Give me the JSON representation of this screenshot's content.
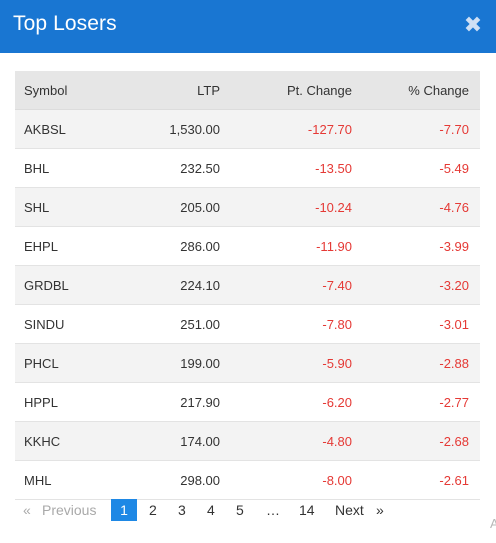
{
  "header": {
    "title": "Top Losers",
    "close_icon": "close-icon"
  },
  "table": {
    "columns": [
      "Symbol",
      "LTP",
      "Pt. Change",
      "% Change"
    ],
    "rows": [
      {
        "symbol": "AKBSL",
        "ltp": "1,530.00",
        "pt_change": "-127.70",
        "pct_change": "-7.70"
      },
      {
        "symbol": "BHL",
        "ltp": "232.50",
        "pt_change": "-13.50",
        "pct_change": "-5.49"
      },
      {
        "symbol": "SHL",
        "ltp": "205.00",
        "pt_change": "-10.24",
        "pct_change": "-4.76"
      },
      {
        "symbol": "EHPL",
        "ltp": "286.00",
        "pt_change": "-11.90",
        "pct_change": "-3.99"
      },
      {
        "symbol": "GRDBL",
        "ltp": "224.10",
        "pt_change": "-7.40",
        "pct_change": "-3.20"
      },
      {
        "symbol": "SINDU",
        "ltp": "251.00",
        "pt_change": "-7.80",
        "pct_change": "-3.01"
      },
      {
        "symbol": "PHCL",
        "ltp": "199.00",
        "pt_change": "-5.90",
        "pct_change": "-2.88"
      },
      {
        "symbol": "HPPL",
        "ltp": "217.90",
        "pt_change": "-6.20",
        "pct_change": "-2.77"
      },
      {
        "symbol": "KKHC",
        "ltp": "174.00",
        "pt_change": "-4.80",
        "pct_change": "-2.68"
      },
      {
        "symbol": "MHL",
        "ltp": "298.00",
        "pt_change": "-8.00",
        "pct_change": "-2.61"
      }
    ]
  },
  "pagination": {
    "prev_icon": "«",
    "prev_label": "Previous",
    "pages": [
      "1",
      "2",
      "3",
      "4",
      "5",
      "…",
      "14"
    ],
    "active_page": "1",
    "next_label": "Next",
    "next_icon": "»"
  },
  "corner_text": "A",
  "colors": {
    "header_bg": "#1976d2",
    "negative": "#e53935",
    "active_page": "#1e88e5"
  }
}
